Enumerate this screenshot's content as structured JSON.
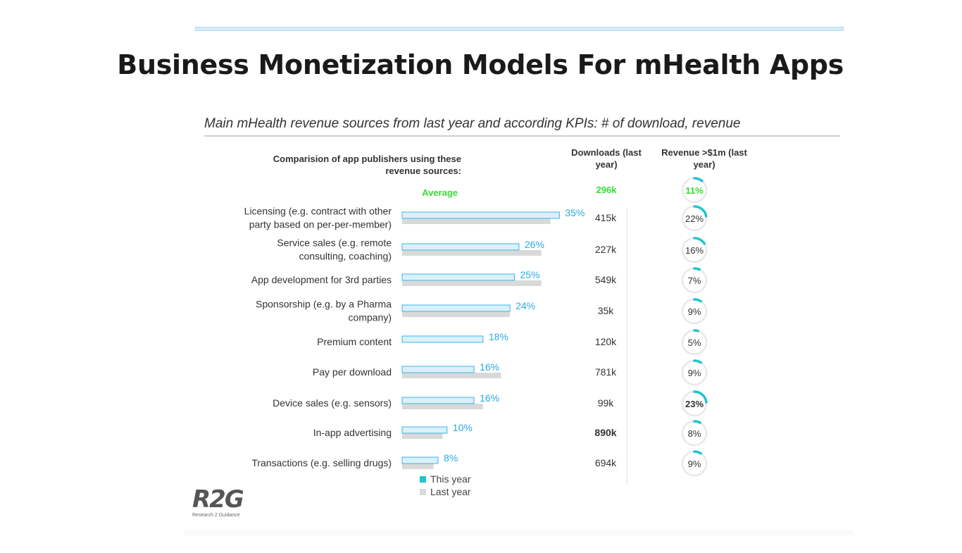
{
  "slide": {
    "title": "Business Monetization Models For mHealth Apps"
  },
  "logo": {
    "text": "R2G",
    "subtitle": "Research 2 Guidance"
  },
  "chart_data": {
    "type": "bar",
    "title": "Main mHealth revenue sources from last year and according KPIs: # of download, revenue",
    "category_header": "Comparision of app publishers using these revenue sources:",
    "downloads_header": "Downloads (last year)",
    "revenue_header": "Revenue >$1m (last year)",
    "average": {
      "label": "Average",
      "downloads": "296k",
      "revenue": "11%",
      "revenue_value": 11
    },
    "categories": [
      "Licensing (e.g. contract with other party based on per-per-member)",
      "Service sales (e.g. remote consulting, coaching)",
      "App development for 3rd parties",
      "Sponsorship (e.g. by a Pharma company)",
      "Premium content",
      "Pay per download",
      "Device sales (e.g. sensors)",
      "In-app advertising",
      "Transactions (e.g. selling drugs)"
    ],
    "series": [
      {
        "name": "This year",
        "values": [
          35,
          26,
          25,
          24,
          18,
          16,
          16,
          10,
          8
        ],
        "color": "#daf0fb",
        "border": "#3fb3e6"
      },
      {
        "name": "Last year",
        "values": [
          33,
          31,
          31,
          24,
          null,
          22,
          18,
          9,
          7
        ],
        "color": "#d9d9d9"
      }
    ],
    "value_labels": [
      "35%",
      "26%",
      "25%",
      "24%",
      "18%",
      "16%",
      "16%",
      "10%",
      "8%"
    ],
    "downloads": [
      "415k",
      "227k",
      "549k",
      "35k",
      "120k",
      "781k",
      "99k",
      "890k",
      "694k"
    ],
    "downloads_bold": [
      false,
      false,
      false,
      false,
      false,
      false,
      false,
      true,
      false
    ],
    "revenue": [
      "22%",
      "16%",
      "7%",
      "9%",
      "5%",
      "9%",
      "23%",
      "8%",
      "9%"
    ],
    "revenue_values": [
      22,
      16,
      7,
      9,
      5,
      9,
      23,
      8,
      9
    ],
    "revenue_bold": [
      false,
      false,
      false,
      false,
      false,
      false,
      true,
      false,
      false
    ],
    "xlim": [
      0,
      100
    ],
    "colors": {
      "label_blue": "#29abe2",
      "ring_teal": "#1ec5cf",
      "ring_track": "#e8e8e8",
      "average_green": "#33dd33",
      "legend_this_year": "#1ec5cf",
      "legend_last_year": "#d9d9d9"
    }
  }
}
